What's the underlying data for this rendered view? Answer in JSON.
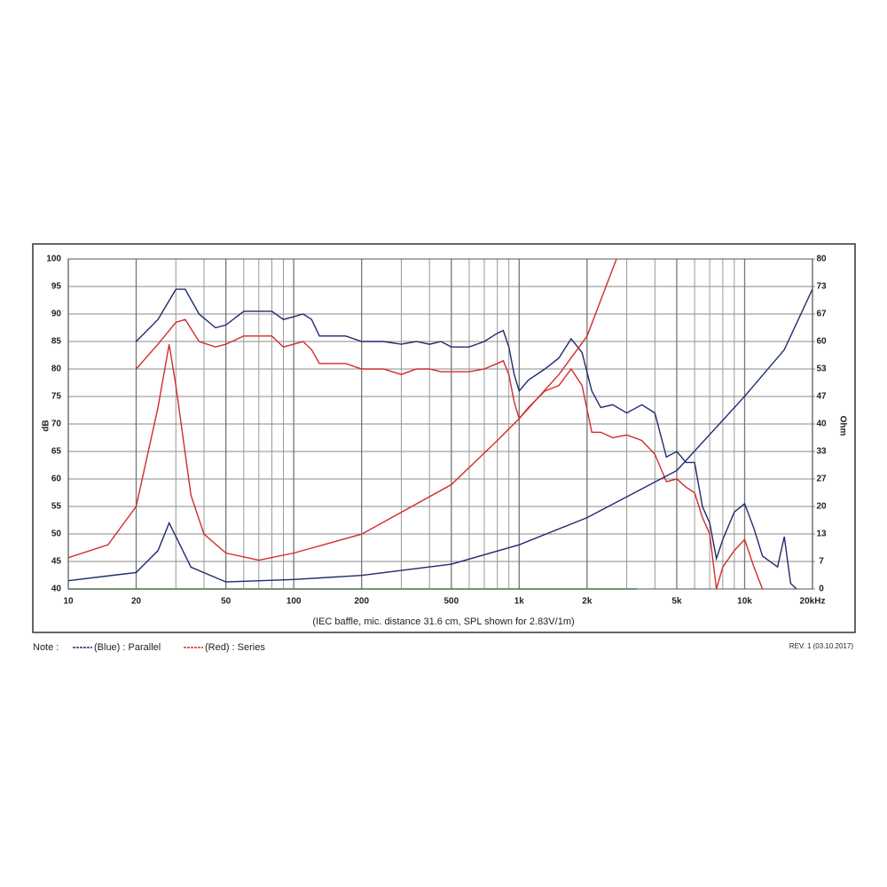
{
  "chart_data": {
    "type": "line",
    "xlabel": "(IEC baffle, mic. distance 31.6 cm, SPL shown for 2.83V/1m)",
    "ylabel": "dB",
    "y2label": "Ohm",
    "log_x": true,
    "grid": true,
    "xlim": [
      10,
      20000
    ],
    "xticks": [
      10,
      20,
      50,
      100,
      200,
      500,
      {
        "value": 1000,
        "label": "1k"
      },
      {
        "value": 2000,
        "label": "2k"
      },
      {
        "value": 5000,
        "label": "5k"
      },
      {
        "value": 10000,
        "label": "10k"
      },
      {
        "value": 20000,
        "label": "20kHz"
      }
    ],
    "x_minor_grid": [
      30,
      40,
      60,
      70,
      80,
      90,
      300,
      400,
      600,
      700,
      800,
      900,
      3000,
      4000,
      6000,
      7000,
      8000,
      9000
    ],
    "ylim": [
      40,
      100
    ],
    "yticks": [
      40,
      45,
      50,
      55,
      60,
      65,
      70,
      75,
      80,
      85,
      90,
      95,
      100
    ],
    "y2lim": [
      0,
      80
    ],
    "y2ticks": [
      0,
      {
        "value": 6.667,
        "label": "7"
      },
      {
        "value": 13.333,
        "label": "13"
      },
      20,
      {
        "value": 26.667,
        "label": "27"
      },
      {
        "value": 33.333,
        "label": "33"
      },
      40,
      {
        "value": 46.667,
        "label": "47"
      },
      {
        "value": 53.333,
        "label": "53"
      },
      60,
      {
        "value": 66.667,
        "label": "67"
      },
      {
        "value": 73.333,
        "label": "73"
      },
      80
    ],
    "series": [
      {
        "color": "#1f2a6e",
        "x": [
          20,
          25,
          30,
          33,
          38,
          45,
          50,
          60,
          70,
          80,
          90,
          100,
          110,
          120,
          130,
          150,
          170,
          200,
          250,
          300,
          350,
          400,
          450,
          500,
          600,
          700,
          800,
          850,
          900,
          950,
          1000,
          1100,
          1300,
          1500,
          1700,
          1900,
          2100,
          2300,
          2600,
          3000,
          3500,
          4000,
          4500,
          5000,
          5500,
          6000,
          6500,
          7000,
          7500,
          8000,
          9000,
          10000,
          11000,
          12000,
          14000,
          15000,
          16000,
          17000
        ],
        "values": [
          85,
          89,
          94.5,
          94.5,
          90,
          87.5,
          88,
          90.5,
          90.5,
          90.5,
          89,
          89.5,
          90,
          89,
          86,
          86,
          86,
          85,
          85,
          84.5,
          85,
          84.5,
          85,
          84,
          84,
          85,
          86.5,
          87,
          84,
          79,
          76,
          78,
          80,
          82,
          85.5,
          83,
          76,
          73,
          73.5,
          72,
          73.5,
          72,
          64,
          65,
          63,
          63,
          55,
          52,
          45.5,
          49,
          54,
          55.5,
          51,
          46,
          44,
          49.5,
          41,
          40
        ]
      },
      {
        "color": "#d42a2a",
        "x": [
          20,
          25,
          30,
          33,
          38,
          45,
          50,
          60,
          70,
          80,
          90,
          100,
          110,
          120,
          130,
          150,
          170,
          200,
          250,
          300,
          350,
          400,
          450,
          500,
          600,
          700,
          800,
          850,
          900,
          950,
          1000,
          1100,
          1300,
          1500,
          1700,
          1900,
          2100,
          2300,
          2600,
          3000,
          3500,
          4000,
          4500,
          5000,
          5500,
          6000,
          6500,
          7000,
          7500,
          8000,
          9000,
          10000,
          11000,
          12000
        ],
        "values": [
          80,
          84.5,
          88.5,
          89,
          85,
          84,
          84.5,
          86,
          86,
          86,
          84,
          84.5,
          85,
          83.5,
          81,
          81,
          81,
          80,
          80,
          79,
          80,
          80,
          79.5,
          79.5,
          79.5,
          80,
          81,
          81.5,
          79,
          74,
          71,
          73,
          76,
          77,
          80,
          77,
          68.5,
          68.5,
          67.5,
          68,
          67,
          64.5,
          59.5,
          60,
          58.5,
          57.5,
          53,
          50,
          40,
          44,
          47,
          49,
          44,
          40
        ]
      },
      {
        "color": "#1f2a6e",
        "axis": "y2",
        "x": [
          10,
          20,
          25,
          28,
          30,
          35,
          50,
          100,
          200,
          500,
          1000,
          2000,
          5000,
          10000,
          15000,
          20000
        ],
        "values": [
          2,
          4,
          9.3,
          16,
          12.7,
          5.3,
          1.7,
          2.3,
          3.3,
          6,
          10.7,
          17.3,
          28.7,
          46.7,
          58,
          72.7
        ]
      },
      {
        "color": "#d42a2a",
        "axis": "y2",
        "x": [
          10,
          15,
          20,
          25,
          28,
          30,
          35,
          40,
          50,
          70,
          100,
          200,
          500,
          800,
          1000,
          1500,
          2000,
          2700
        ],
        "values": [
          7.6,
          10.7,
          20,
          44,
          59.3,
          49.3,
          22.7,
          13.3,
          8.7,
          7,
          8.7,
          13.3,
          25.3,
          36,
          41.3,
          52,
          61.3,
          80
        ]
      }
    ],
    "legend_title": "Note :",
    "legend": [
      {
        "label": "(Blue)  : Parallel",
        "color": "#1f2a6e"
      },
      {
        "label": "(Red) : Series",
        "color": "#d42a2a"
      }
    ],
    "revision": "REV. 1 (03.10.2017)"
  }
}
